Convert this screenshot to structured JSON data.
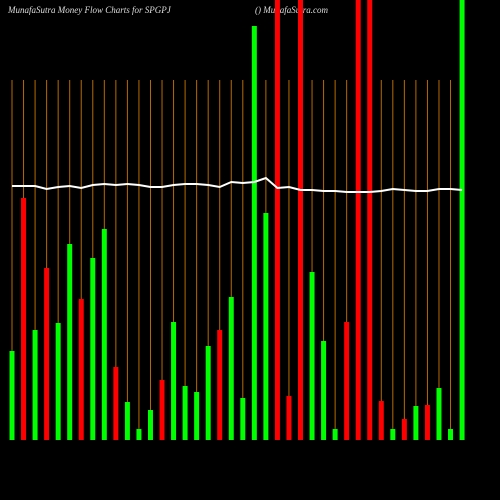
{
  "chart_data": {
    "type": "bar",
    "title": "MunafaSutra  Money Flow  Charts for SPGPJ",
    "subtitle": "() MunafaSutra.com",
    "categories": [
      null,
      null,
      null,
      null,
      null,
      null,
      null,
      null,
      null,
      null,
      null,
      null,
      null,
      null,
      null,
      null,
      null,
      null,
      null,
      null,
      null,
      null,
      null,
      null,
      null,
      null,
      null,
      null,
      null,
      null,
      null,
      null,
      null,
      null,
      null,
      null,
      null,
      null,
      null,
      null
    ],
    "values": [
      89,
      242,
      110,
      172,
      117,
      196,
      141,
      182,
      211,
      73,
      38,
      11,
      30,
      60,
      118,
      54,
      48,
      94,
      110,
      143,
      42,
      414,
      227,
      440,
      44,
      440,
      168,
      99,
      11,
      118,
      440,
      440,
      39,
      11,
      21,
      34,
      35,
      52,
      11,
      440
    ],
    "colors": [
      "#00ff00",
      "#ff0000",
      "#00ff00",
      "#ff0000",
      "#00ff00",
      "#00ff00",
      "#ff0000",
      "#00ff00",
      "#00ff00",
      "#ff0000",
      "#00ff00",
      "#00ff00",
      "#00ff00",
      "#ff0000",
      "#00ff00",
      "#00ff00",
      "#00ff00",
      "#00ff00",
      "#ff0000",
      "#00ff00",
      "#00ff00",
      "#00ff00",
      "#00ff00",
      "#ff0000",
      "#ff0000",
      "#ff0000",
      "#00ff00",
      "#00ff00",
      "#00ff00",
      "#ff0000",
      "#ff0000",
      "#ff0000",
      "#ff0000",
      "#00ff00",
      "#ff0000",
      "#00ff00",
      "#ff0000",
      "#00ff00",
      "#00ff00",
      "#00ff00"
    ],
    "line_values": [
      254,
      254,
      254,
      251,
      253,
      254,
      252,
      255,
      256,
      255,
      256,
      255,
      253,
      253,
      255,
      256,
      256,
      255,
      253,
      258,
      257,
      258,
      262,
      252,
      253,
      250,
      250,
      249,
      249,
      248,
      248,
      248,
      249,
      251,
      250,
      249,
      249,
      251,
      251,
      250
    ],
    "line_color": "#ffffff",
    "ylim": [
      0,
      440
    ],
    "grid": true,
    "grid_color": "#b86a00"
  }
}
